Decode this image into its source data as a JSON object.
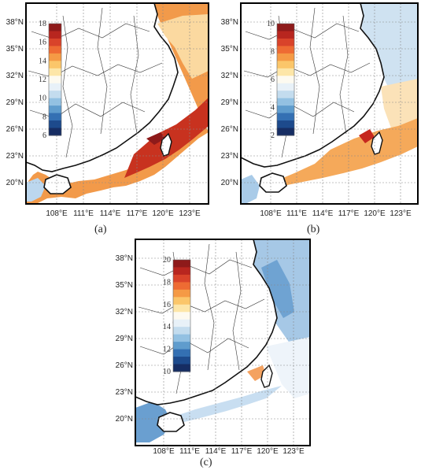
{
  "panels": [
    {
      "id": "a",
      "tag": "(a)",
      "lat_labels": [
        "38°N",
        "35°N",
        "32°N",
        "29°N",
        "26°N",
        "23°N",
        "20°N"
      ],
      "lon_labels": [
        "108°E",
        "111°E",
        "114°E",
        "117°E",
        "120°E",
        "123°E"
      ],
      "colorbar_ticks": [
        "18",
        "16",
        "14",
        "12",
        "10",
        "8",
        "6"
      ],
      "colorbar_colors": [
        "#8e1a1a",
        "#b8261f",
        "#d9432a",
        "#ee6b33",
        "#f59a45",
        "#fbc66a",
        "#fde6a8",
        "#fdfaf0",
        "#e8f1f8",
        "#c3dcee",
        "#93c1e2",
        "#5f9ccd",
        "#3470b3",
        "#1d4a8c",
        "#162d63"
      ]
    },
    {
      "id": "b",
      "tag": "(b)",
      "lat_labels": [
        "38°N",
        "35°N",
        "32°N",
        "29°N",
        "26°N",
        "23°N",
        "20°N"
      ],
      "lon_labels": [
        "108°E",
        "111°E",
        "114°E",
        "117°E",
        "120°E",
        "123°E"
      ],
      "colorbar_ticks": [
        "10",
        "8",
        "6",
        "4",
        "2"
      ],
      "colorbar_colors": [
        "#8e1a1a",
        "#b8261f",
        "#d9432a",
        "#ee6b33",
        "#f59a45",
        "#fbc66a",
        "#fde6a8",
        "#fdfaf0",
        "#e8f1f8",
        "#c3dcee",
        "#93c1e2",
        "#5f9ccd",
        "#3470b3",
        "#1d4a8c",
        "#162d63"
      ]
    },
    {
      "id": "c",
      "tag": "(c)",
      "lat_labels": [
        "38°N",
        "35°N",
        "32°N",
        "29°N",
        "26°N",
        "23°N",
        "20°N"
      ],
      "lon_labels": [
        "108°E",
        "111°E",
        "114°E",
        "117°E",
        "120°E",
        "123°E"
      ],
      "colorbar_ticks": [
        "20",
        "18",
        "16",
        "14",
        "12",
        "10"
      ],
      "colorbar_colors": [
        "#8e1a1a",
        "#b8261f",
        "#d9432a",
        "#ee6b33",
        "#f59a45",
        "#fbc66a",
        "#fde6a8",
        "#fdfaf0",
        "#e8f1f8",
        "#c3dcee",
        "#93c1e2",
        "#5f9ccd",
        "#3470b3",
        "#1d4a8c",
        "#162d63"
      ]
    }
  ],
  "colors": {
    "frame": "#000000",
    "grid": "#888888",
    "boundary": "#333333",
    "warm_fill": "#f08a3c",
    "hot_fill": "#c6281f",
    "cool_fill": "#a9cbe8",
    "light_fill": "#fbe9c8"
  }
}
